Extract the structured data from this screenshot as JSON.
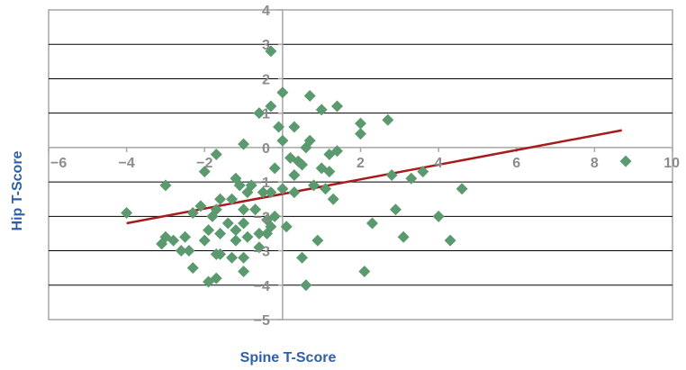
{
  "chart_data": {
    "type": "scatter",
    "title": "",
    "xlabel": "Spine T-Score",
    "ylabel": "Hip T-Score",
    "xlim": [
      -6,
      10
    ],
    "ylim": [
      -5,
      4
    ],
    "xticks": [
      -6,
      -4,
      -2,
      0,
      2,
      4,
      6,
      8,
      10
    ],
    "yticks": [
      -5,
      -4,
      -3,
      -2,
      -1,
      0,
      1,
      2,
      3,
      4
    ],
    "xtick_labels": [
      "−6",
      "−4",
      "−2",
      "0",
      "2",
      "4",
      "6",
      "8",
      "10"
    ],
    "ytick_labels": [
      "−5",
      "−4",
      "−3",
      "−2",
      "−1",
      "0",
      "1",
      "2",
      "3",
      "4"
    ],
    "grid": "horizontal",
    "legend": "none",
    "colors": {
      "marker": "#5b9a6e",
      "trendline": "#a61c1c",
      "axis_title": "#2f5fa7",
      "tick_label": "#8c8c8c",
      "grid": "#000000",
      "frame": "#a6a6a6"
    },
    "series": [
      {
        "marker": "diamond",
        "points": [
          [
            -0.3,
            2.8
          ],
          [
            0.0,
            1.6
          ],
          [
            0.7,
            1.5
          ],
          [
            1.0,
            1.1
          ],
          [
            1.4,
            1.2
          ],
          [
            -0.3,
            1.2
          ],
          [
            -0.6,
            1.0
          ],
          [
            2.0,
            0.7
          ],
          [
            2.7,
            0.8
          ],
          [
            0.3,
            0.6
          ],
          [
            -0.1,
            0.6
          ],
          [
            2.0,
            0.4
          ],
          [
            0.0,
            0.2
          ],
          [
            0.7,
            0.2
          ],
          [
            -1.0,
            0.1
          ],
          [
            -1.7,
            -0.2
          ],
          [
            0.2,
            -0.3
          ],
          [
            0.4,
            -0.4
          ],
          [
            1.2,
            -0.2
          ],
          [
            1.4,
            -0.1
          ],
          [
            0.6,
            0.0
          ],
          [
            0.5,
            -0.5
          ],
          [
            -0.2,
            -0.6
          ],
          [
            1.0,
            -0.6
          ],
          [
            1.2,
            -0.7
          ],
          [
            -2.0,
            -0.7
          ],
          [
            -1.2,
            -0.9
          ],
          [
            0.3,
            -0.8
          ],
          [
            -0.8,
            -1.1
          ],
          [
            0.8,
            -1.1
          ],
          [
            1.1,
            -1.2
          ],
          [
            -1.1,
            -1.1
          ],
          [
            0.0,
            -1.2
          ],
          [
            -0.9,
            -1.3
          ],
          [
            -0.5,
            -1.3
          ],
          [
            -0.3,
            -1.3
          ],
          [
            0.3,
            -1.3
          ],
          [
            -1.3,
            -1.5
          ],
          [
            -1.6,
            -1.5
          ],
          [
            1.3,
            -1.5
          ],
          [
            -2.1,
            -1.7
          ],
          [
            -1.7,
            -1.8
          ],
          [
            -1.0,
            -1.8
          ],
          [
            -0.7,
            -1.8
          ],
          [
            2.9,
            -1.8
          ],
          [
            -2.3,
            -1.9
          ],
          [
            -1.8,
            -2.0
          ],
          [
            -0.2,
            -2.0
          ],
          [
            -0.4,
            -2.1
          ],
          [
            4.0,
            -2.0
          ],
          [
            -1.0,
            -2.2
          ],
          [
            -1.4,
            -2.2
          ],
          [
            -0.3,
            -2.3
          ],
          [
            0.1,
            -2.3
          ],
          [
            2.3,
            -2.2
          ],
          [
            -1.9,
            -2.4
          ],
          [
            -1.2,
            -2.4
          ],
          [
            -0.6,
            -2.5
          ],
          [
            -0.4,
            -2.5
          ],
          [
            -1.6,
            -2.5
          ],
          [
            -0.9,
            -2.6
          ],
          [
            -2.5,
            -2.6
          ],
          [
            -3.0,
            -2.6
          ],
          [
            -2.8,
            -2.7
          ],
          [
            -2.0,
            -2.7
          ],
          [
            -1.2,
            -2.7
          ],
          [
            -3.1,
            -2.8
          ],
          [
            3.1,
            -2.6
          ],
          [
            0.9,
            -2.7
          ],
          [
            4.3,
            -2.7
          ],
          [
            -0.6,
            -2.9
          ],
          [
            -2.6,
            -3.0
          ],
          [
            -2.4,
            -3.0
          ],
          [
            -1.7,
            -3.1
          ],
          [
            -1.6,
            -3.1
          ],
          [
            -1.3,
            -3.2
          ],
          [
            -1.0,
            -3.2
          ],
          [
            0.5,
            -3.2
          ],
          [
            -2.3,
            -3.5
          ],
          [
            -1.7,
            -3.8
          ],
          [
            -1.0,
            -3.6
          ],
          [
            2.1,
            -3.6
          ],
          [
            -1.9,
            -3.9
          ],
          [
            0.6,
            -4.0
          ],
          [
            -4.0,
            -1.9
          ],
          [
            -3.0,
            -1.1
          ],
          [
            3.6,
            -0.7
          ],
          [
            3.3,
            -0.9
          ],
          [
            4.6,
            -1.2
          ],
          [
            2.8,
            -0.8
          ],
          [
            8.8,
            -0.4
          ]
        ]
      }
    ],
    "trendline": {
      "type": "linear",
      "x": [
        -4.0,
        8.7
      ],
      "y": [
        -2.2,
        0.5
      ]
    }
  }
}
